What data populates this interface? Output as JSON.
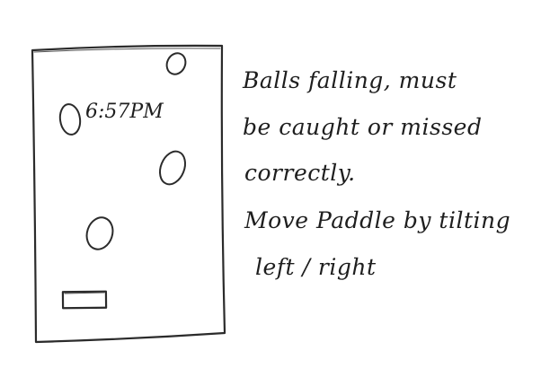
{
  "phone": {
    "clock_time": "6:57PM"
  },
  "game": {
    "objects": [
      "falling-ball",
      "falling-ball",
      "falling-ball",
      "falling-ball",
      "paddle"
    ]
  },
  "notes": {
    "line1": "Balls falling, must",
    "line2": "be caught or missed",
    "line3": "correctly.",
    "line4": "Move Paddle by tilting",
    "line5": "left / right"
  }
}
